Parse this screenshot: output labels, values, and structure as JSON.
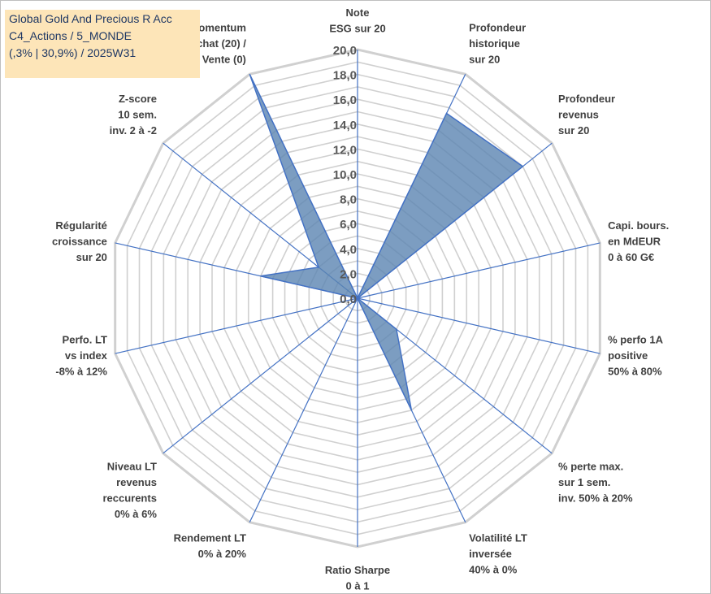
{
  "title_box": {
    "line1": "Global Gold And Precious R Acc",
    "line2": "C4_Actions / 5_MONDE",
    "line3": "(,3% | 30,9%) / 2025W31"
  },
  "chart_data": {
    "type": "radar",
    "r_range": [
      0,
      20
    ],
    "ticks": [
      "0,0",
      "2,0",
      "4,0",
      "6,0",
      "8,0",
      "10,0",
      "12,0",
      "14,0",
      "16,0",
      "18,0",
      "20,0"
    ],
    "grid": true,
    "axes": [
      {
        "label": [
          "Note",
          "ESG sur 20"
        ],
        "value": 0
      },
      {
        "label": [
          "Profondeur",
          "historique",
          "sur 20"
        ],
        "value": 16.5
      },
      {
        "label": [
          "Profondeur",
          "revenus",
          "sur 20"
        ],
        "value": 17
      },
      {
        "label": [
          "Capi. bours.",
          "en MdEUR",
          "0 à 60 G€"
        ],
        "value": 0
      },
      {
        "label": [
          "% perfo 1A",
          "positive",
          "50% à 80%"
        ],
        "value": 0
      },
      {
        "label": [
          "% perte max.",
          "sur 1 sem.",
          "inv. 50% à 20%"
        ],
        "value": 4
      },
      {
        "label": [
          "Volatilité LT",
          "inversée",
          "40% à 0%"
        ],
        "value": 10
      },
      {
        "label": [
          "Ratio Sharpe",
          "0 à 1"
        ],
        "value": 0
      },
      {
        "label": [
          "Rendement LT",
          "0% à 20%"
        ],
        "value": 0
      },
      {
        "label": [
          "Niveau LT",
          "revenus",
          "reccurents",
          "0% à 6%"
        ],
        "value": 0
      },
      {
        "label": [
          "Perfo. LT",
          "vs index",
          "-8% à 12%"
        ],
        "value": 0
      },
      {
        "label": [
          "Régularité",
          "croissance",
          "sur 20"
        ],
        "value": 8
      },
      {
        "label": [
          "Z-score",
          "10 sem.",
          "inv. 2 à -2"
        ],
        "value": 4
      },
      {
        "label": [
          "Momentum",
          "Achat (20) /",
          "Vente (0)"
        ],
        "value": 20
      }
    ],
    "colors": {
      "fill": "#5b84b1",
      "stroke": "#4472c4",
      "grid": "#d0d0d0",
      "spoke": "#4472c4"
    }
  }
}
